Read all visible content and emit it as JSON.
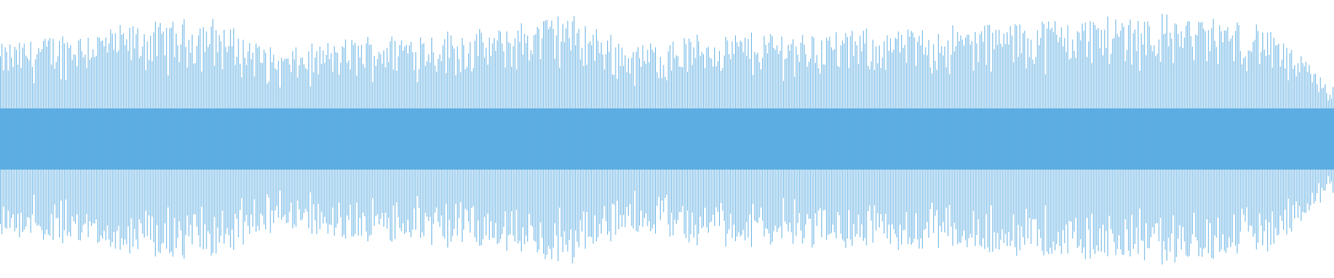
{
  "chart_data": {
    "type": "waveform",
    "title": "",
    "xlabel": "",
    "ylabel": "",
    "ylim": [
      -1,
      1
    ],
    "grid": false,
    "legend": "none",
    "color": "#5dade2",
    "background": "#ffffff",
    "peak_envelope": [
      0.7,
      0.8,
      0.85,
      0.9,
      0.65,
      0.75,
      0.8,
      0.8,
      0.95,
      0.7,
      0.78,
      0.8,
      0.8,
      0.82,
      0.85,
      0.9,
      0.92,
      0.92,
      0.85,
      0.4
    ],
    "core_amplitude": 0.22
  }
}
